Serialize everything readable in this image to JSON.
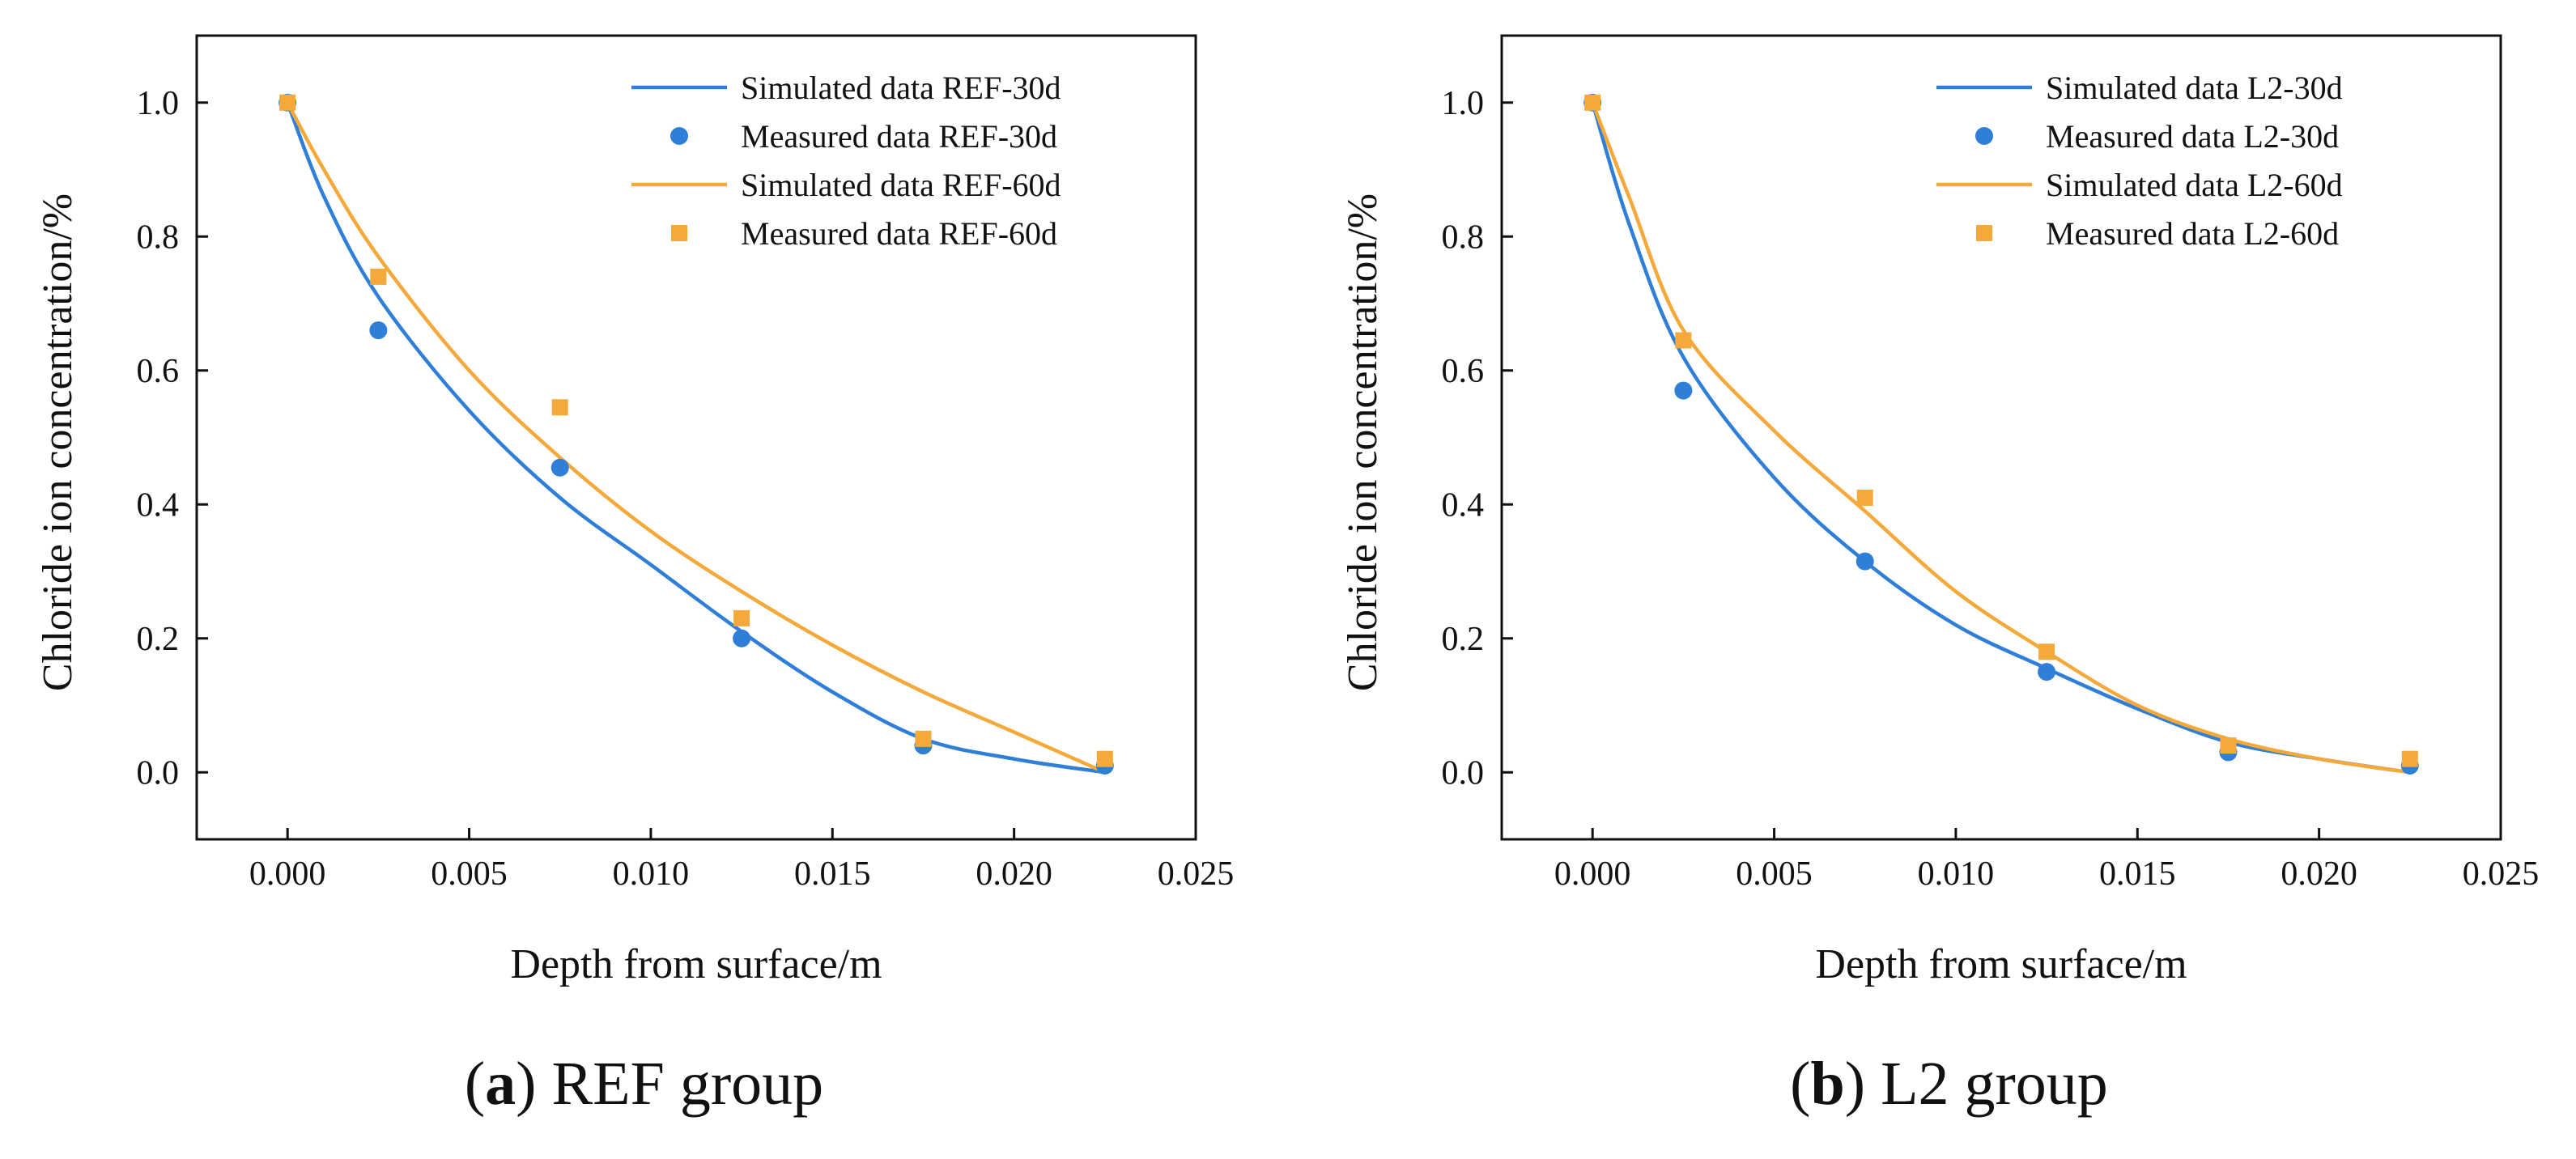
{
  "colors": {
    "series_30d": "#2f7fd8",
    "series_60d": "#f5a93a",
    "axis": "#111111"
  },
  "chart_data": [
    {
      "type": "line",
      "panel_label": "a",
      "caption": "REF group",
      "xlabel": "Depth from surface/m",
      "ylabel": "Chloride ion concentration/%",
      "xlim": [
        -0.0025,
        0.025
      ],
      "ylim": [
        -0.1,
        1.1
      ],
      "xticks": [
        0.0,
        0.005,
        0.01,
        0.015,
        0.02,
        0.025
      ],
      "xtick_labels": [
        "0.000",
        "0.005",
        "0.010",
        "0.015",
        "0.020",
        "0.025"
      ],
      "yticks": [
        0.0,
        0.2,
        0.4,
        0.6,
        0.8,
        1.0
      ],
      "ytick_labels": [
        "0.0",
        "0.2",
        "0.4",
        "0.6",
        "0.8",
        "1.0"
      ],
      "legend_position": "top-right",
      "series": [
        {
          "name": "Simulated data REF-30d",
          "kind": "line",
          "color_key": "series_30d",
          "x": [
            0.0,
            0.001,
            0.0025,
            0.005,
            0.0075,
            0.01,
            0.0125,
            0.015,
            0.0175,
            0.02,
            0.0225
          ],
          "y": [
            1.0,
            0.86,
            0.71,
            0.54,
            0.41,
            0.31,
            0.21,
            0.12,
            0.05,
            0.02,
            0.0
          ]
        },
        {
          "name": "Measured data REF-30d",
          "kind": "circle",
          "color_key": "series_30d",
          "x": [
            0.0,
            0.0025,
            0.0075,
            0.0125,
            0.0175,
            0.0225
          ],
          "y": [
            1.0,
            0.66,
            0.455,
            0.2,
            0.04,
            0.01
          ]
        },
        {
          "name": "Simulated data REF-60d",
          "kind": "line",
          "color_key": "series_60d",
          "x": [
            0.0,
            0.001,
            0.0025,
            0.005,
            0.0075,
            0.01,
            0.0125,
            0.015,
            0.0175,
            0.02,
            0.0225
          ],
          "y": [
            1.0,
            0.9,
            0.77,
            0.6,
            0.47,
            0.36,
            0.27,
            0.19,
            0.12,
            0.06,
            0.0
          ]
        },
        {
          "name": "Measured data REF-60d",
          "kind": "square",
          "color_key": "series_60d",
          "x": [
            0.0,
            0.0025,
            0.0075,
            0.0125,
            0.0175,
            0.0225
          ],
          "y": [
            1.0,
            0.74,
            0.545,
            0.23,
            0.05,
            0.02
          ]
        }
      ]
    },
    {
      "type": "line",
      "panel_label": "b",
      "caption": "L2 group",
      "xlabel": "Depth from surface/m",
      "ylabel": "Chloride ion concentration/%",
      "xlim": [
        -0.0025,
        0.025
      ],
      "ylim": [
        -0.1,
        1.1
      ],
      "xticks": [
        0.0,
        0.005,
        0.01,
        0.015,
        0.02,
        0.025
      ],
      "xtick_labels": [
        "0.000",
        "0.005",
        "0.010",
        "0.015",
        "0.020",
        "0.025"
      ],
      "yticks": [
        0.0,
        0.2,
        0.4,
        0.6,
        0.8,
        1.0
      ],
      "ytick_labels": [
        "0.0",
        "0.2",
        "0.4",
        "0.6",
        "0.8",
        "1.0"
      ],
      "legend_position": "top-right",
      "series": [
        {
          "name": "Simulated data L2-30d",
          "kind": "line",
          "color_key": "series_30d",
          "x": [
            0.0,
            0.001,
            0.0025,
            0.005,
            0.0075,
            0.01,
            0.0125,
            0.015,
            0.0175,
            0.02,
            0.0225
          ],
          "y": [
            1.0,
            0.82,
            0.62,
            0.44,
            0.315,
            0.22,
            0.155,
            0.095,
            0.045,
            0.02,
            0.0
          ]
        },
        {
          "name": "Measured data L2-30d",
          "kind": "circle",
          "color_key": "series_30d",
          "x": [
            0.0,
            0.0025,
            0.0075,
            0.0125,
            0.0175,
            0.0225
          ],
          "y": [
            1.0,
            0.57,
            0.315,
            0.15,
            0.03,
            0.01
          ]
        },
        {
          "name": "Simulated data L2-60d",
          "kind": "line",
          "color_key": "series_60d",
          "x": [
            0.0,
            0.001,
            0.0025,
            0.005,
            0.0075,
            0.01,
            0.0125,
            0.015,
            0.0175,
            0.02,
            0.0225
          ],
          "y": [
            1.0,
            0.86,
            0.66,
            0.51,
            0.39,
            0.27,
            0.18,
            0.1,
            0.05,
            0.02,
            0.0
          ]
        },
        {
          "name": "Measured data L2-60d",
          "kind": "square",
          "color_key": "series_60d",
          "x": [
            0.0,
            0.0025,
            0.0075,
            0.0125,
            0.0175,
            0.0225
          ],
          "y": [
            1.0,
            0.645,
            0.41,
            0.18,
            0.04,
            0.02
          ]
        }
      ]
    }
  ]
}
